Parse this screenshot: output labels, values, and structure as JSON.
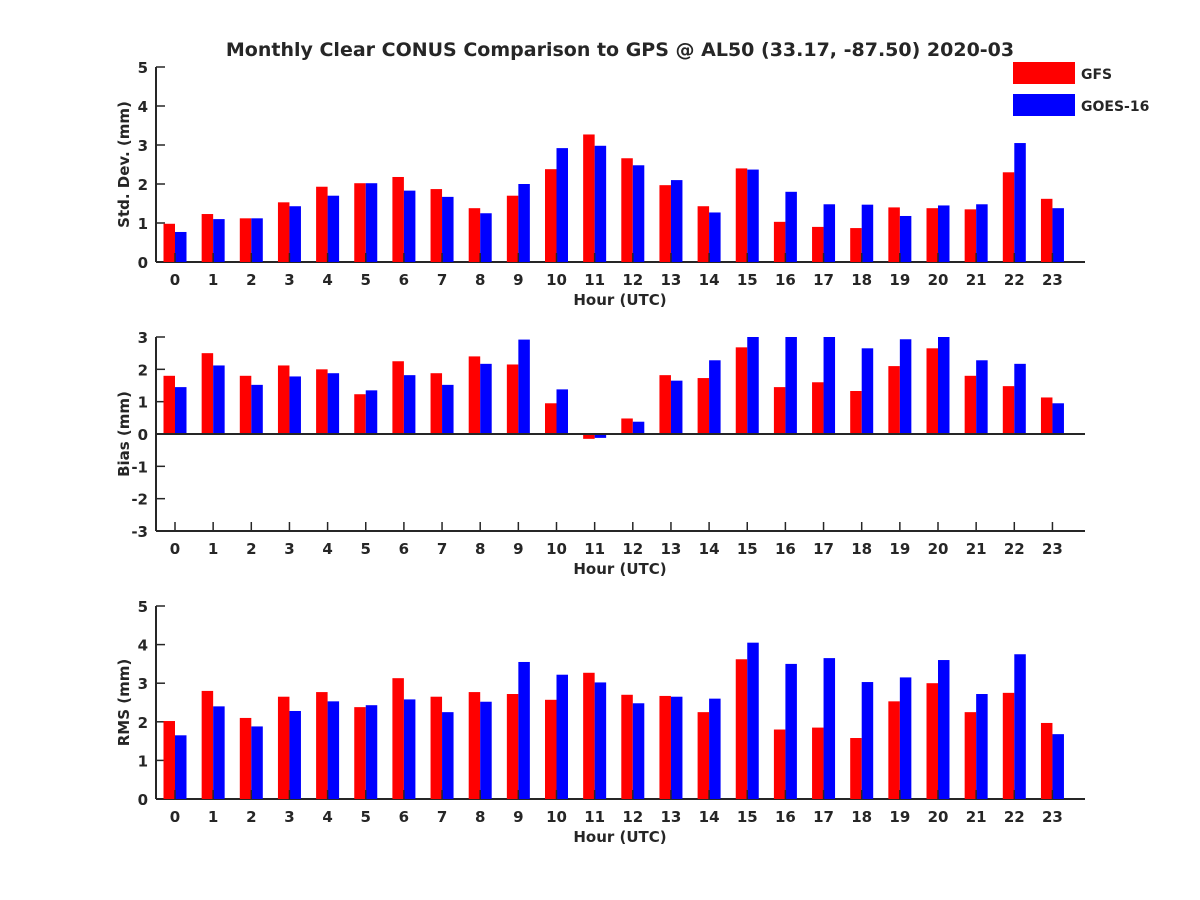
{
  "title": "Monthly Clear CONUS Comparison to GPS @ AL50 (33.17, -87.50) 2020-03",
  "legend": {
    "placement": "top-right",
    "items": [
      {
        "label": "GFS",
        "color": "#ff0000"
      },
      {
        "label": "GOES-16",
        "color": "#0000ff"
      }
    ]
  },
  "colors": {
    "gfs": "#ff0000",
    "goes": "#0000ff",
    "axis": "#262626"
  },
  "chart_data": [
    {
      "type": "bar",
      "ylabel": "Std. Dev. (mm)",
      "xlabel": "Hour (UTC)",
      "ylim": [
        0,
        5
      ],
      "yticks": [
        0,
        1,
        2,
        3,
        4,
        5
      ],
      "categories": [
        "0",
        "1",
        "2",
        "3",
        "4",
        "5",
        "6",
        "7",
        "8",
        "9",
        "10",
        "11",
        "12",
        "13",
        "14",
        "15",
        "16",
        "17",
        "18",
        "19",
        "20",
        "21",
        "22",
        "23"
      ],
      "series": [
        {
          "name": "GFS",
          "color": "#ff0000",
          "values": [
            0.98,
            1.23,
            1.12,
            1.53,
            1.93,
            2.02,
            2.18,
            1.87,
            1.38,
            1.7,
            2.38,
            3.27,
            2.66,
            1.97,
            1.43,
            2.4,
            1.03,
            0.9,
            0.87,
            1.4,
            1.38,
            1.35,
            2.3,
            1.62
          ]
        },
        {
          "name": "GOES-16",
          "color": "#0000ff",
          "values": [
            0.77,
            1.1,
            1.12,
            1.43,
            1.7,
            2.02,
            1.83,
            1.67,
            1.25,
            2.0,
            2.92,
            2.98,
            2.48,
            2.1,
            1.27,
            2.37,
            1.8,
            1.48,
            1.47,
            1.18,
            1.45,
            1.48,
            3.05,
            1.38
          ]
        }
      ]
    },
    {
      "type": "bar",
      "ylabel": "Bias (mm)",
      "xlabel": "Hour (UTC)",
      "ylim": [
        -3,
        3
      ],
      "yticks": [
        -3,
        -2,
        -1,
        0,
        1,
        2,
        3
      ],
      "categories": [
        "0",
        "1",
        "2",
        "3",
        "4",
        "5",
        "6",
        "7",
        "8",
        "9",
        "10",
        "11",
        "12",
        "13",
        "14",
        "15",
        "16",
        "17",
        "18",
        "19",
        "20",
        "21",
        "22",
        "23"
      ],
      "series": [
        {
          "name": "GFS",
          "color": "#ff0000",
          "values": [
            1.8,
            2.5,
            1.8,
            2.12,
            2.0,
            1.23,
            2.25,
            1.88,
            2.4,
            2.15,
            0.95,
            -0.15,
            0.48,
            1.82,
            1.73,
            2.68,
            1.45,
            1.6,
            1.33,
            2.1,
            2.65,
            1.8,
            1.48,
            1.13
          ]
        },
        {
          "name": "GOES-16",
          "color": "#0000ff",
          "values": [
            1.45,
            2.12,
            1.52,
            1.78,
            1.88,
            1.35,
            1.82,
            1.52,
            2.17,
            2.92,
            1.38,
            -0.12,
            0.38,
            1.65,
            2.28,
            3.0,
            3.0,
            3.0,
            2.65,
            2.93,
            3.0,
            2.28,
            2.17,
            0.95
          ]
        }
      ]
    },
    {
      "type": "bar",
      "ylabel": "RMS (mm)",
      "xlabel": "Hour (UTC)",
      "ylim": [
        0,
        5
      ],
      "yticks": [
        0,
        1,
        2,
        3,
        4,
        5
      ],
      "categories": [
        "0",
        "1",
        "2",
        "3",
        "4",
        "5",
        "6",
        "7",
        "8",
        "9",
        "10",
        "11",
        "12",
        "13",
        "14",
        "15",
        "16",
        "17",
        "18",
        "19",
        "20",
        "21",
        "22",
        "23"
      ],
      "series": [
        {
          "name": "GFS",
          "color": "#ff0000",
          "values": [
            2.02,
            2.8,
            2.1,
            2.65,
            2.77,
            2.38,
            3.13,
            2.65,
            2.77,
            2.72,
            2.57,
            3.27,
            2.7,
            2.67,
            2.25,
            3.62,
            1.8,
            1.85,
            1.58,
            2.53,
            3.0,
            2.25,
            2.75,
            1.97
          ]
        },
        {
          "name": "GOES-16",
          "color": "#0000ff",
          "values": [
            1.65,
            2.4,
            1.88,
            2.28,
            2.53,
            2.43,
            2.58,
            2.25,
            2.52,
            3.55,
            3.22,
            3.02,
            2.48,
            2.65,
            2.6,
            4.05,
            3.5,
            3.65,
            3.03,
            3.15,
            3.6,
            2.72,
            3.75,
            1.68
          ]
        }
      ]
    }
  ]
}
